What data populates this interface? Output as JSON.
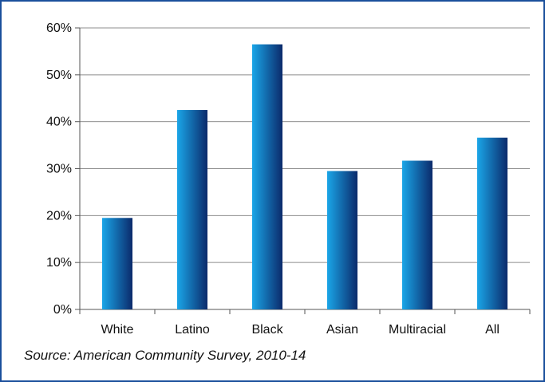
{
  "chart_data": {
    "type": "bar",
    "categories": [
      "White",
      "Latino",
      "Black",
      "Asian",
      "Multiracial",
      "All"
    ],
    "values": [
      19.5,
      42.5,
      56.5,
      29.5,
      31.7,
      36.6
    ],
    "ylim": [
      0,
      60
    ],
    "yticks": [
      "0%",
      "10%",
      "20%",
      "30%",
      "40%",
      "50%",
      "60%"
    ],
    "ytick_values": [
      0,
      10,
      20,
      30,
      40,
      50,
      60
    ],
    "xlabel": "",
    "ylabel": "",
    "grid": true,
    "legend": "none",
    "colors": {
      "bar_light": "#1aa6e8",
      "bar_dark": "#0b2a6b",
      "grid": "#8c8c8c",
      "frame": "#1b4f9c"
    }
  },
  "source": "Source: American Community Survey, 2010-14"
}
